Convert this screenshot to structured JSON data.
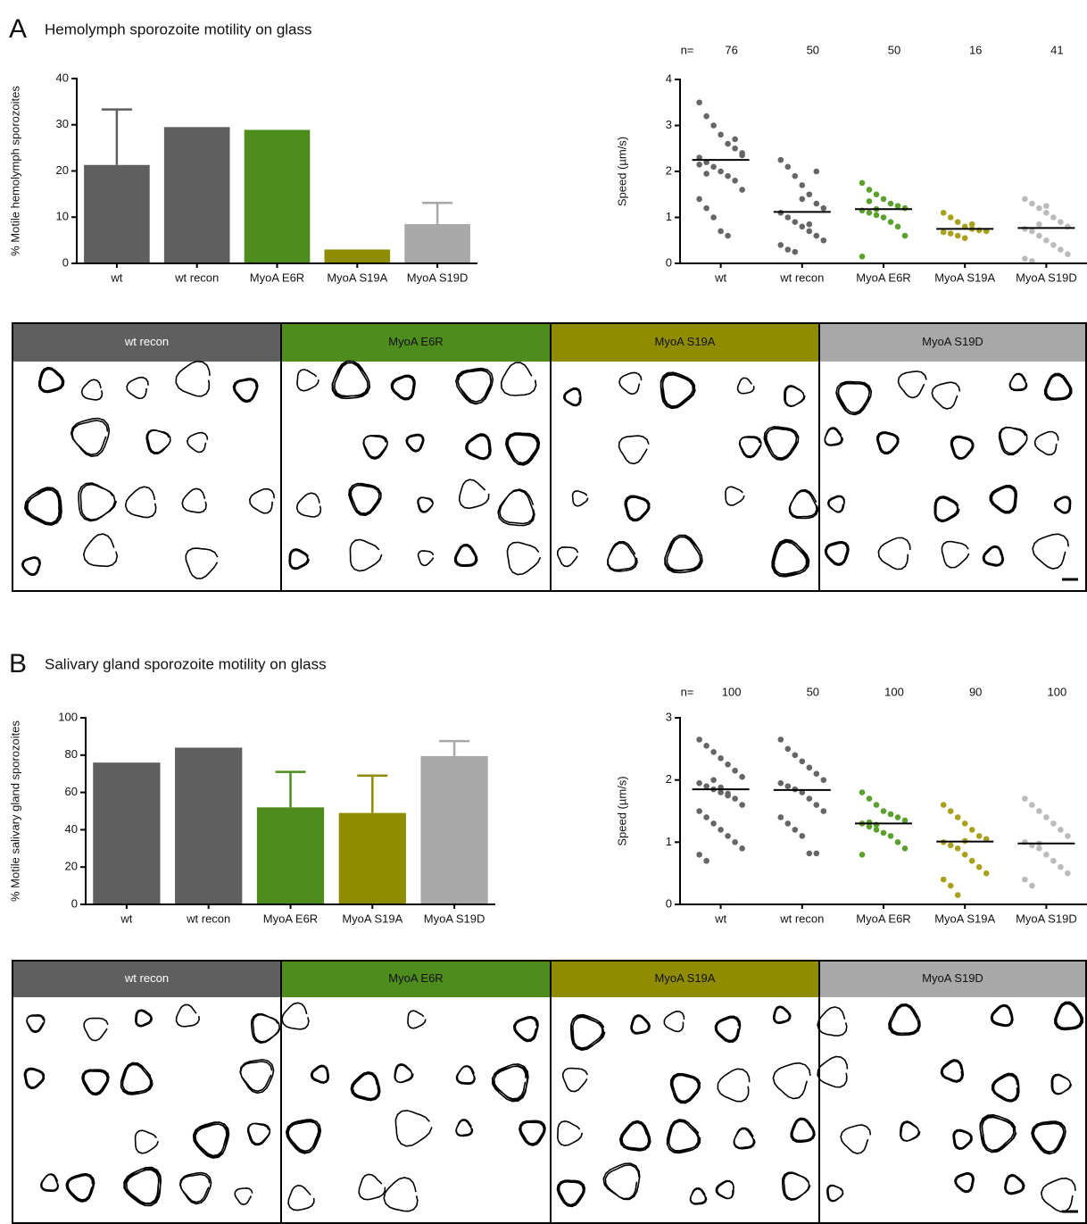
{
  "sections": [
    {
      "letter": "A",
      "title": "Hemolymph sporozoite motility on glass",
      "tracks": [
        {
          "label": "wt recon",
          "color": "#5f5f5f"
        },
        {
          "label": "MyoA E6R",
          "color": "#4e8c1e"
        },
        {
          "label": "MyoA S19A",
          "color": "#8f8c00"
        },
        {
          "label": "MyoA S19D",
          "color": "#a8a8a8"
        }
      ]
    },
    {
      "letter": "B",
      "title": "Salivary gland sporozoite motility on glass",
      "tracks": [
        {
          "label": "wt recon",
          "color": "#5f5f5f"
        },
        {
          "label": "MyoA E6R",
          "color": "#4e8c1e"
        },
        {
          "label": "MyoA S19A",
          "color": "#8f8c00"
        },
        {
          "label": "MyoA S19D",
          "color": "#a8a8a8"
        }
      ]
    }
  ],
  "chart_data": [
    {
      "type": "bar",
      "ylabel": "% Motile hemolymph sporozoites",
      "categories": [
        "wt",
        "wt recon",
        "MyoA E6R",
        "MyoA S19A",
        "MyoA S19D"
      ],
      "values": [
        21.3,
        29.5,
        28.9,
        3,
        8.5
      ],
      "errors": [
        12,
        null,
        null,
        null,
        4.6
      ],
      "colors": [
        "#5f5f5f",
        "#5f5f5f",
        "#4e8c1e",
        "#8f8c00",
        "#a8a8a8"
      ],
      "ylim": [
        0,
        40
      ],
      "yticks": [
        0,
        10,
        20,
        30,
        40
      ]
    },
    {
      "type": "dot",
      "ylabel": "Speed (µm/s)",
      "n_label": "n=",
      "categories": [
        "wt",
        "wt recon",
        "MyoA E6R",
        "MyoA S19A",
        "MyoA S19D"
      ],
      "n": [
        76,
        50,
        50,
        16,
        41
      ],
      "means": [
        2.25,
        1.12,
        1.18,
        0.75,
        0.77
      ],
      "colors": [
        "#666666",
        "#666666",
        "#5aa02c",
        "#a9a01c",
        "#bbbbbb"
      ],
      "points": [
        [
          3.5,
          3.2,
          3.0,
          2.8,
          2.6,
          2.5,
          2.4,
          2.3,
          2.2,
          2.1,
          2.0,
          1.9,
          1.8,
          1.6,
          1.4,
          1.2,
          1.0,
          0.7,
          0.6,
          2.7,
          2.35,
          2.15,
          1.95
        ],
        [
          2.25,
          2.1,
          1.9,
          1.7,
          1.5,
          1.3,
          1.2,
          1.1,
          1.0,
          0.9,
          0.8,
          0.7,
          0.6,
          0.5,
          0.4,
          0.3,
          0.25,
          1.4,
          0.85,
          2.0
        ],
        [
          1.75,
          1.6,
          1.5,
          1.4,
          1.3,
          1.25,
          1.2,
          1.15,
          1.1,
          1.05,
          1.0,
          0.9,
          0.8,
          0.6,
          0.15,
          1.35,
          1.18
        ],
        [
          1.1,
          1.0,
          0.9,
          0.8,
          0.75,
          0.72,
          0.7,
          0.68,
          0.65,
          0.6,
          0.55,
          0.85
        ],
        [
          1.4,
          1.3,
          1.2,
          1.1,
          1.0,
          0.9,
          0.8,
          0.75,
          0.7,
          0.6,
          0.5,
          0.4,
          0.3,
          0.2,
          0.1,
          0.05,
          0.85,
          1.25
        ]
      ],
      "ylim": [
        0,
        4
      ],
      "yticks": [
        0,
        1,
        2,
        3,
        4
      ]
    },
    {
      "type": "bar",
      "ylabel": "% Motile salivary gland sporozoites",
      "categories": [
        "wt",
        "wt recon",
        "MyoA E6R",
        "MyoA S19A",
        "MyoA S19D"
      ],
      "values": [
        76,
        84,
        52,
        49,
        79.5
      ],
      "errors": [
        null,
        null,
        19,
        20,
        8
      ],
      "colors": [
        "#5f5f5f",
        "#5f5f5f",
        "#4e8c1e",
        "#8f8c00",
        "#a8a8a8"
      ],
      "ylim": [
        0,
        100
      ],
      "yticks": [
        0,
        20,
        40,
        60,
        80,
        100
      ]
    },
    {
      "type": "dot",
      "ylabel": "Speed (µm/s)",
      "n_label": "n=",
      "categories": [
        "wt",
        "wt recon",
        "MyoA E6R",
        "MyoA S19A",
        "MyoA S19D"
      ],
      "n": [
        100,
        50,
        100,
        90,
        100
      ],
      "means": [
        1.85,
        1.84,
        1.3,
        1.01,
        0.98
      ],
      "colors": [
        "#666666",
        "#666666",
        "#5aa02c",
        "#a9a01c",
        "#bbbbbb"
      ],
      "points": [
        [
          2.65,
          2.55,
          2.45,
          2.35,
          2.25,
          2.15,
          2.05,
          1.95,
          1.9,
          1.85,
          1.8,
          1.75,
          1.7,
          1.6,
          1.5,
          1.4,
          1.3,
          1.2,
          1.1,
          1.0,
          0.9,
          0.8,
          0.7,
          2.0,
          1.88,
          1.78
        ],
        [
          2.65,
          2.5,
          2.4,
          2.3,
          2.2,
          2.1,
          2.0,
          1.95,
          1.9,
          1.85,
          1.8,
          1.7,
          1.6,
          1.5,
          1.4,
          1.3,
          1.2,
          1.1,
          0.82,
          0.82
        ],
        [
          1.8,
          1.7,
          1.6,
          1.5,
          1.45,
          1.4,
          1.35,
          1.3,
          1.25,
          1.2,
          1.15,
          1.1,
          1.0,
          0.9,
          0.8,
          1.32,
          1.28
        ],
        [
          1.6,
          1.5,
          1.4,
          1.3,
          1.2,
          1.1,
          1.05,
          1.0,
          0.95,
          0.9,
          0.8,
          0.7,
          0.6,
          0.5,
          0.4,
          0.3,
          0.15,
          1.02
        ],
        [
          1.7,
          1.6,
          1.5,
          1.4,
          1.3,
          1.2,
          1.1,
          1.0,
          0.95,
          0.9,
          0.8,
          0.7,
          0.6,
          0.5,
          0.4,
          0.3,
          0.98
        ]
      ],
      "ylim": [
        0,
        3
      ],
      "yticks": [
        0,
        1,
        2,
        3
      ]
    }
  ]
}
